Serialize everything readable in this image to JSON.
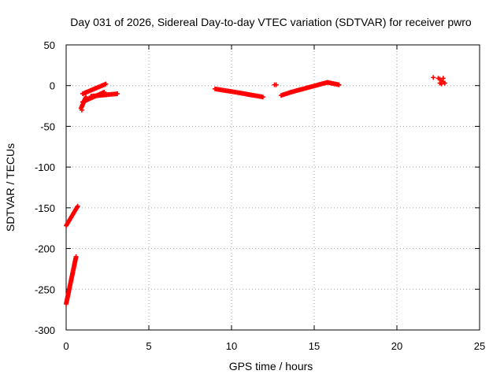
{
  "chart_data": {
    "type": "scatter",
    "title": "Day 031 of 2026, Sidereal Day-to-day VTEC variation (SDTVAR) for receiver pwro",
    "xlabel": "GPS time / hours",
    "ylabel": "SDTVAR / TECUs",
    "xlim": [
      0,
      25
    ],
    "ylim": [
      -300,
      50
    ],
    "xticks": [
      0,
      5,
      10,
      15,
      20,
      25
    ],
    "yticks": [
      -300,
      -250,
      -200,
      -150,
      -100,
      -50,
      0,
      50
    ],
    "grid": true,
    "marker": "plus",
    "color": "#ff0000",
    "segments": [
      {
        "x": [
          0.0,
          0.6
        ],
        "y": [
          -268,
          -210
        ]
      },
      {
        "x": [
          0.0,
          0.7
        ],
        "y": [
          -172,
          -148
        ]
      },
      {
        "x": [
          0.9,
          1.2
        ],
        "y": [
          -28,
          -14
        ]
      },
      {
        "x": [
          1.0,
          2.3
        ],
        "y": [
          -20,
          -8
        ]
      },
      {
        "x": [
          1.0,
          2.4
        ],
        "y": [
          -10,
          2
        ]
      },
      {
        "x": [
          1.5,
          3.1
        ],
        "y": [
          -13,
          -10
        ]
      },
      {
        "x": [
          9.0,
          10.5
        ],
        "y": [
          -4,
          -9
        ]
      },
      {
        "x": [
          10.5,
          11.9
        ],
        "y": [
          -9,
          -14
        ]
      },
      {
        "x": [
          13.0,
          13.6
        ],
        "y": [
          -12,
          -8
        ]
      },
      {
        "x": [
          13.6,
          15.8
        ],
        "y": [
          -8,
          4
        ]
      },
      {
        "x": [
          15.8,
          16.5
        ],
        "y": [
          4,
          1
        ]
      }
    ],
    "points": [
      {
        "x": 12.6,
        "y": 1
      },
      {
        "x": 12.7,
        "y": 1
      },
      {
        "x": 22.2,
        "y": 10
      },
      {
        "x": 22.5,
        "y": 9
      },
      {
        "x": 22.6,
        "y": 8
      },
      {
        "x": 22.6,
        "y": 3
      },
      {
        "x": 22.7,
        "y": 6
      },
      {
        "x": 22.7,
        "y": 2
      },
      {
        "x": 22.8,
        "y": 9
      },
      {
        "x": 22.8,
        "y": 5
      },
      {
        "x": 22.9,
        "y": 3
      },
      {
        "x": 0.95,
        "y": -30
      }
    ]
  }
}
